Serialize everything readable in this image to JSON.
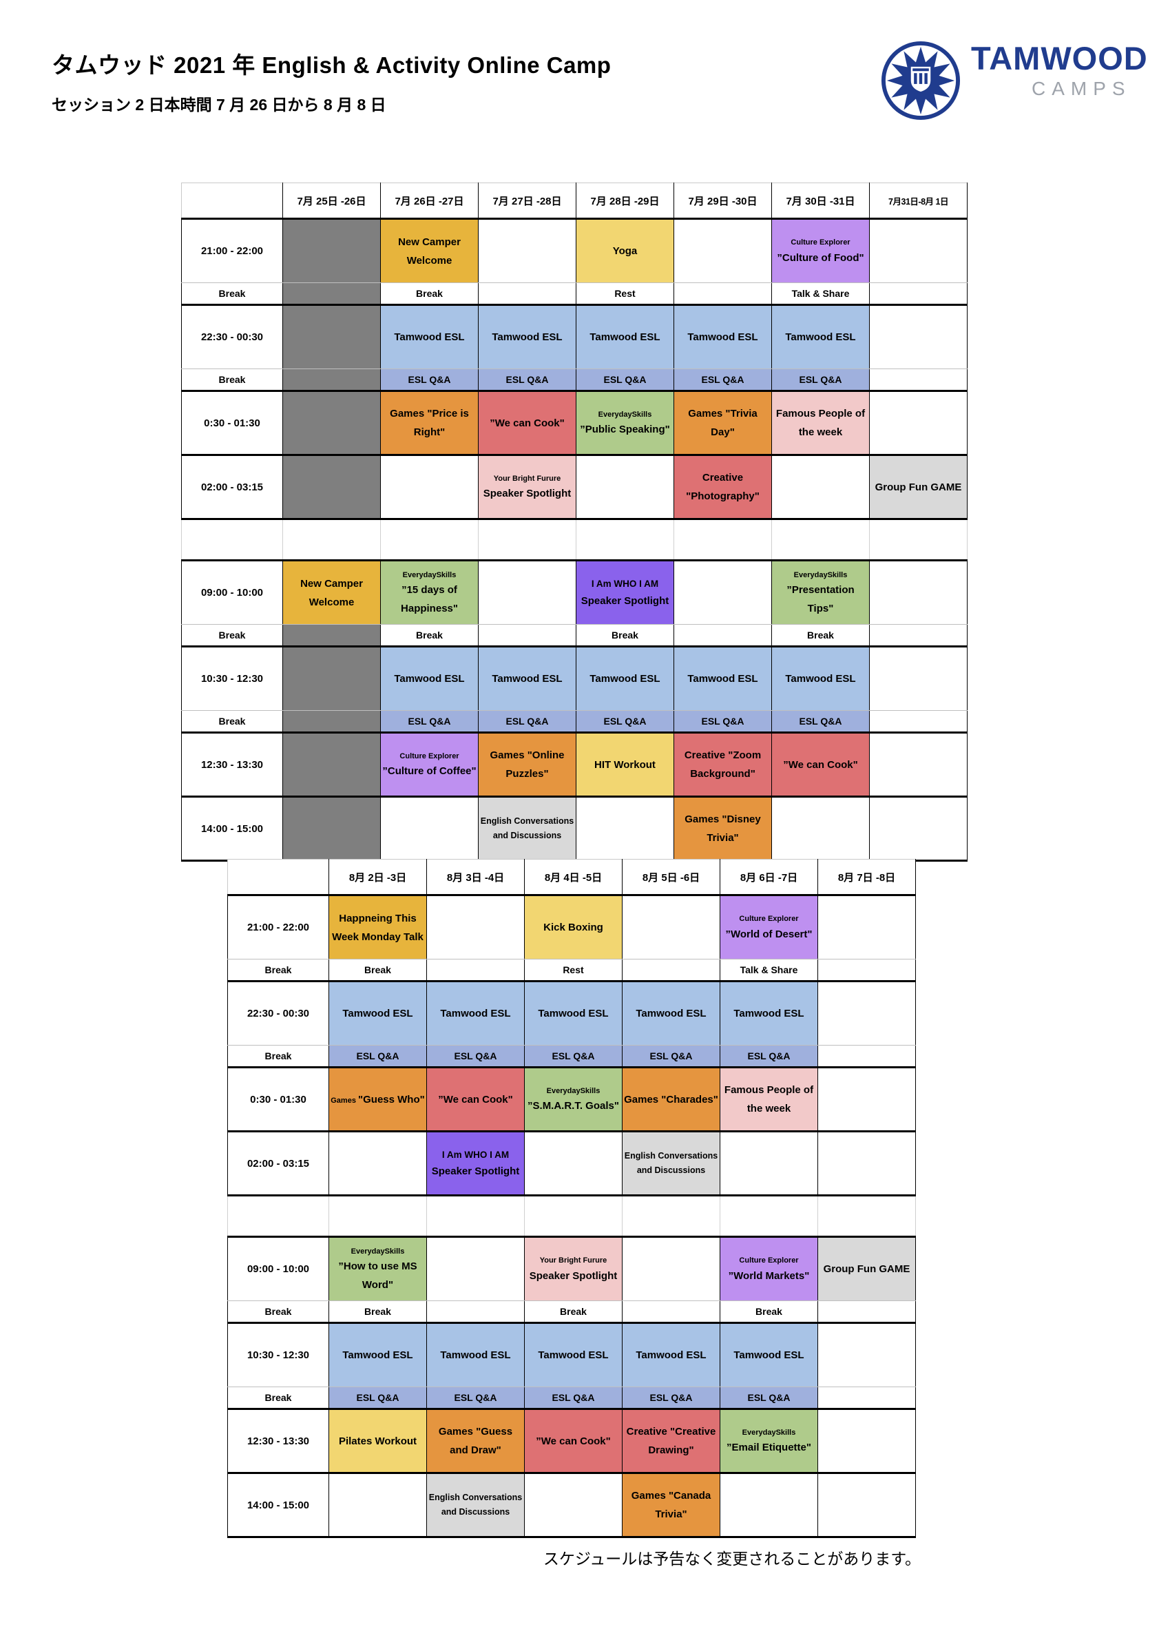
{
  "page": {
    "title": "タムウッド 2021 年 English & Activity Online Camp",
    "subtitle": "セッション 2 日本時間 7 月 26 日から 8 月 8 日",
    "footer_note": "スケジュールは予告なく変更されることがあります。"
  },
  "logo": {
    "brand": "TAMWOOD",
    "sub": "CAMPS",
    "icon": "maple-starburst-emblem",
    "brand_color": "#203C8E",
    "sub_color": "#9EA3AB"
  },
  "palette": {
    "gold": "#E7B43C",
    "yellow": "#F2D671",
    "purple": "#BE90F0",
    "violet": "#8A62EC",
    "blue": "#A8C3E6",
    "periwinkle": "#9FB0DD",
    "orange": "#E5953F",
    "red": "#DE7173",
    "pink": "#F2C9C9",
    "green": "#AFCB8B",
    "lightgray": "#D9D9D9",
    "darkgray": "#7F7F7F"
  },
  "tables": [
    {
      "name": "week1",
      "headers": [
        {
          "label": ""
        },
        {
          "label": "7月 25日 -26日"
        },
        {
          "label": "7月 26日 -27日"
        },
        {
          "label": "7月 27日 -28日"
        },
        {
          "label": "7月 28日 -29日"
        },
        {
          "label": "7月 29日 -30日"
        },
        {
          "label": "7月 30日 -31日"
        },
        {
          "label": "7月31日-8月 1日",
          "small": true
        }
      ],
      "rows": [
        {
          "kind": "activity",
          "time": "21:00 - 22:00",
          "cells": [
            {
              "bg": "darkgray"
            },
            {
              "bg": "gold",
              "text": "New Camper Welcome"
            },
            {},
            {
              "bg": "yellow",
              "text": "Yoga"
            },
            {},
            {
              "bg": "purple",
              "head": "Culture Explorer",
              "text": "”Culture of Food\""
            },
            {}
          ]
        },
        {
          "kind": "break",
          "time": "Break",
          "cells": [
            {
              "bg": "darkgray"
            },
            {
              "text": "Break"
            },
            {},
            {
              "text": "Rest"
            },
            {},
            {
              "text": "Talk & Share"
            },
            {}
          ]
        },
        {
          "kind": "activity",
          "time": "22:30 - 00:30",
          "cells": [
            {
              "bg": "darkgray"
            },
            {
              "bg": "blue",
              "text": "Tamwood ESL"
            },
            {
              "bg": "blue",
              "text": "Tamwood ESL"
            },
            {
              "bg": "blue",
              "text": "Tamwood ESL"
            },
            {
              "bg": "blue",
              "text": "Tamwood ESL"
            },
            {
              "bg": "blue",
              "text": "Tamwood ESL"
            },
            {}
          ]
        },
        {
          "kind": "break",
          "time": "Break",
          "cells": [
            {
              "bg": "darkgray"
            },
            {
              "bg": "periwinkle",
              "text": "ESL Q&A"
            },
            {
              "bg": "periwinkle",
              "text": "ESL Q&A"
            },
            {
              "bg": "periwinkle",
              "text": "ESL Q&A"
            },
            {
              "bg": "periwinkle",
              "text": "ESL Q&A"
            },
            {
              "bg": "periwinkle",
              "text": "ESL Q&A"
            },
            {}
          ]
        },
        {
          "kind": "activity",
          "time": "0:30 - 01:30",
          "cells": [
            {
              "bg": "darkgray"
            },
            {
              "bg": "orange",
              "text": "Games \"Price is Right\""
            },
            {
              "bg": "red",
              "text": "”We can Cook\""
            },
            {
              "bg": "green",
              "head": "EverydaySkills",
              "text": "”Public Speaking\""
            },
            {
              "bg": "orange",
              "text": "Games \"Trivia Day\""
            },
            {
              "bg": "pink",
              "text": "Famous People of the week"
            },
            {}
          ]
        },
        {
          "kind": "activity",
          "time": "02:00 - 03:15",
          "cells": [
            {
              "bg": "darkgray"
            },
            {},
            {
              "bg": "pink",
              "head": "Your Bright Furure",
              "text": "Speaker Spotlight"
            },
            {},
            {
              "bg": "red",
              "text": "Creative \"Photography\""
            },
            {},
            {
              "bg": "lightgray",
              "text": "Group Fun GAME"
            }
          ]
        },
        {
          "kind": "gap"
        },
        {
          "kind": "activity",
          "time": "09:00 - 10:00",
          "cells": [
            {
              "bg": "gold",
              "text": "New Camper Welcome"
            },
            {
              "bg": "green",
              "head": "EverydaySkills",
              "text": "”15 days of Happiness\""
            },
            {},
            {
              "bg": "violet",
              "head": "I Am WHO I AM",
              "headStyle": "md",
              "text": "Speaker Spotlight"
            },
            {},
            {
              "bg": "green",
              "head": "EverydaySkills",
              "text": "”Presentation Tips\""
            },
            {}
          ]
        },
        {
          "kind": "break",
          "time": "Break",
          "cells": [
            {
              "bg": "darkgray"
            },
            {
              "text": "Break"
            },
            {},
            {
              "text": "Break"
            },
            {},
            {
              "text": "Break"
            },
            {}
          ]
        },
        {
          "kind": "activity",
          "time": "10:30 - 12:30",
          "cells": [
            {
              "bg": "darkgray"
            },
            {
              "bg": "blue",
              "text": "Tamwood ESL"
            },
            {
              "bg": "blue",
              "text": "Tamwood ESL"
            },
            {
              "bg": "blue",
              "text": "Tamwood ESL"
            },
            {
              "bg": "blue",
              "text": "Tamwood ESL"
            },
            {
              "bg": "blue",
              "text": "Tamwood ESL"
            },
            {}
          ]
        },
        {
          "kind": "break",
          "time": "Break",
          "cells": [
            {
              "bg": "darkgray"
            },
            {
              "bg": "periwinkle",
              "text": "ESL Q&A"
            },
            {
              "bg": "periwinkle",
              "text": "ESL Q&A"
            },
            {
              "bg": "periwinkle",
              "text": "ESL Q&A"
            },
            {
              "bg": "periwinkle",
              "text": "ESL Q&A"
            },
            {
              "bg": "periwinkle",
              "text": "ESL Q&A"
            },
            {}
          ]
        },
        {
          "kind": "activity",
          "time": "12:30 - 13:30",
          "cells": [
            {
              "bg": "darkgray"
            },
            {
              "bg": "purple",
              "head": "Culture Explorer",
              "text": "”Culture of Coffee\""
            },
            {
              "bg": "orange",
              "text": "Games \"Online Puzzles\""
            },
            {
              "bg": "yellow",
              "text": "HIT Workout"
            },
            {
              "bg": "red",
              "text": "Creative \"Zoom Background\""
            },
            {
              "bg": "red",
              "text": "”We can Cook\""
            },
            {}
          ]
        },
        {
          "kind": "activity",
          "time": "14:00 - 15:00",
          "cells": [
            {
              "bg": "darkgray"
            },
            {},
            {
              "bg": "lightgray",
              "text": "English Conversations and Discussions",
              "size": "md"
            },
            {},
            {
              "bg": "orange",
              "text": "Games \"Disney Trivia\""
            },
            {},
            {}
          ]
        }
      ]
    },
    {
      "name": "week2",
      "headers": [
        {
          "label": ""
        },
        {
          "label": "8月 2日 -3日"
        },
        {
          "label": "8月 3日 -4日"
        },
        {
          "label": "8月 4日 -5日"
        },
        {
          "label": "8月 5日 -6日"
        },
        {
          "label": "8月 6日 -7日"
        },
        {
          "label": "8月 7日 -8日"
        }
      ],
      "rows": [
        {
          "kind": "activity",
          "time": "21:00 - 22:00",
          "cells": [
            {
              "bg": "gold",
              "text": "Happneing This Week Monday Talk"
            },
            {},
            {
              "bg": "yellow",
              "text": "Kick Boxing"
            },
            {},
            {
              "bg": "purple",
              "head": "Culture Explorer",
              "text": "”World of Desert\""
            },
            {}
          ]
        },
        {
          "kind": "break",
          "time": "Break",
          "cells": [
            {
              "text": "Break"
            },
            {},
            {
              "text": "Rest"
            },
            {},
            {
              "text": "Talk & Share"
            },
            {}
          ]
        },
        {
          "kind": "activity",
          "time": "22:30 - 00:30",
          "cells": [
            {
              "bg": "blue",
              "text": "Tamwood ESL"
            },
            {
              "bg": "blue",
              "text": "Tamwood ESL"
            },
            {
              "bg": "blue",
              "text": "Tamwood ESL"
            },
            {
              "bg": "blue",
              "text": "Tamwood ESL"
            },
            {
              "bg": "blue",
              "text": "Tamwood ESL"
            },
            {}
          ]
        },
        {
          "kind": "break",
          "time": "Break",
          "cells": [
            {
              "bg": "periwinkle",
              "text": "ESL Q&A"
            },
            {
              "bg": "periwinkle",
              "text": "ESL Q&A"
            },
            {
              "bg": "periwinkle",
              "text": "ESL Q&A"
            },
            {
              "bg": "periwinkle",
              "text": "ESL Q&A"
            },
            {
              "bg": "periwinkle",
              "text": "ESL Q&A"
            },
            {}
          ]
        },
        {
          "kind": "activity",
          "time": "0:30 - 01:30",
          "cells": [
            {
              "bg": "orange",
              "head": "Games",
              "inline": true,
              "text": "\"Guess Who\""
            },
            {
              "bg": "red",
              "text": "”We can Cook\""
            },
            {
              "bg": "green",
              "head": "EverydaySkills",
              "text": "”S.M.A.R.T. Goals\""
            },
            {
              "bg": "orange",
              "text": "Games \"Charades\""
            },
            {
              "bg": "pink",
              "text": "Famous People of the week"
            },
            {}
          ]
        },
        {
          "kind": "activity",
          "time": "02:00 - 03:15",
          "cells": [
            {},
            {
              "bg": "violet",
              "head": "I Am WHO I AM",
              "headStyle": "md",
              "text": "Speaker Spotlight"
            },
            {},
            {
              "bg": "lightgray",
              "text": "English Conversations and Discussions",
              "size": "md"
            },
            {},
            {}
          ]
        },
        {
          "kind": "gap"
        },
        {
          "kind": "activity",
          "time": "09:00 - 10:00",
          "cells": [
            {
              "bg": "green",
              "head": "EverydaySkills",
              "text": "”How to use MS Word\""
            },
            {},
            {
              "bg": "pink",
              "head": "Your Bright Furure",
              "text": "Speaker Spotlight"
            },
            {},
            {
              "bg": "purple",
              "head": "Culture Explorer",
              "text": "”World Markets\""
            },
            {
              "bg": "lightgray",
              "text": "Group Fun GAME"
            }
          ]
        },
        {
          "kind": "break",
          "time": "Break",
          "cells": [
            {
              "text": "Break"
            },
            {},
            {
              "text": "Break"
            },
            {},
            {
              "text": "Break"
            },
            {}
          ]
        },
        {
          "kind": "activity",
          "time": "10:30 - 12:30",
          "cells": [
            {
              "bg": "blue",
              "text": "Tamwood ESL"
            },
            {
              "bg": "blue",
              "text": "Tamwood ESL"
            },
            {
              "bg": "blue",
              "text": "Tamwood ESL"
            },
            {
              "bg": "blue",
              "text": "Tamwood ESL"
            },
            {
              "bg": "blue",
              "text": "Tamwood ESL"
            },
            {}
          ]
        },
        {
          "kind": "break",
          "time": "Break",
          "cells": [
            {
              "bg": "periwinkle",
              "text": "ESL Q&A"
            },
            {
              "bg": "periwinkle",
              "text": "ESL Q&A"
            },
            {
              "bg": "periwinkle",
              "text": "ESL Q&A"
            },
            {
              "bg": "periwinkle",
              "text": "ESL Q&A"
            },
            {
              "bg": "periwinkle",
              "text": "ESL Q&A"
            },
            {}
          ]
        },
        {
          "kind": "activity",
          "time": "12:30 - 13:30",
          "cells": [
            {
              "bg": "yellow",
              "text": "Pilates Workout"
            },
            {
              "bg": "orange",
              "text": "Games \"Guess and Draw\""
            },
            {
              "bg": "red",
              "text": "”We can Cook\""
            },
            {
              "bg": "red",
              "text": "Creative \"Creative Drawing\""
            },
            {
              "bg": "green",
              "head": "EverydaySkills",
              "text": "”Email Etiquette\""
            },
            {}
          ]
        },
        {
          "kind": "activity",
          "time": "14:00 - 15:00",
          "cells": [
            {},
            {
              "bg": "lightgray",
              "text": "English Conversations and Discussions",
              "size": "md"
            },
            {},
            {
              "bg": "orange",
              "text": "Games \"Canada Trivia\""
            },
            {},
            {}
          ]
        }
      ]
    }
  ]
}
